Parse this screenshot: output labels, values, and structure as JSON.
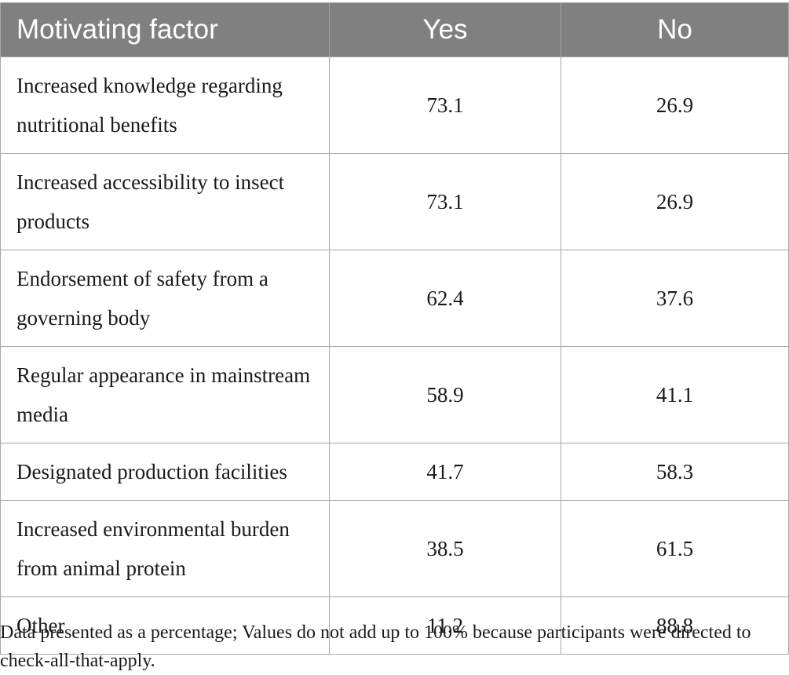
{
  "table": {
    "headers": {
      "factor": "Motivating factor",
      "yes": "Yes",
      "no": "No"
    },
    "rows": [
      {
        "factor": "Increased knowledge regarding nutritional benefits",
        "yes": "73.1",
        "no": "26.9"
      },
      {
        "factor": "Increased accessibility to insect products",
        "yes": "73.1",
        "no": "26.9"
      },
      {
        "factor": "Endorsement of safety from a governing body",
        "yes": "62.4",
        "no": "37.6"
      },
      {
        "factor": "Regular appearance in mainstream media",
        "yes": "58.9",
        "no": "41.1"
      },
      {
        "factor": "Designated production facilities",
        "yes": "41.7",
        "no": "58.3"
      },
      {
        "factor": "Increased environmental burden from animal protein",
        "yes": "38.5",
        "no": "61.5"
      },
      {
        "factor": "Other",
        "yes": "11.2",
        "no": "88.8"
      }
    ]
  },
  "footnote": "Data presented as a percentage; Values do not add up to 100% because participants were directed to check-all-that-apply.",
  "colors": {
    "header_bg": "#808080",
    "header_text": "#ffffff",
    "border": "#a6a6a6",
    "body_text": "#1a1a1a"
  }
}
